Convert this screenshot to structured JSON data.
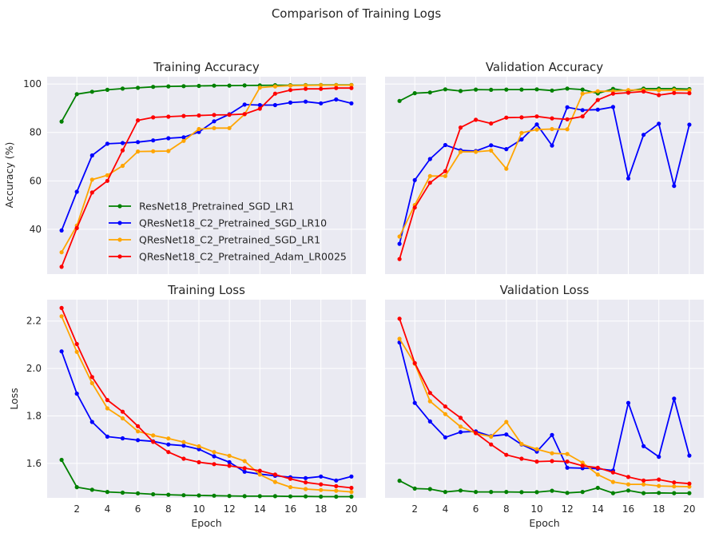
{
  "suptitle": "Comparison of Training Logs",
  "colors": {
    "green": "#008000",
    "blue": "#0000ff",
    "orange": "#ffa500",
    "red": "#ff0000"
  },
  "legend_placement": "lower-right inside Training Accuracy panel",
  "chart_data": [
    {
      "type": "line",
      "title": "Training Accuracy",
      "xlabel": "",
      "ylabel": "Accuracy (%)",
      "x": [
        1,
        2,
        3,
        4,
        5,
        6,
        7,
        8,
        9,
        10,
        11,
        12,
        13,
        14,
        15,
        16,
        17,
        18,
        19,
        20
      ],
      "xlim": [
        0.05,
        20.95
      ],
      "ylim": [
        21.5,
        103
      ],
      "xticks": [
        2,
        4,
        6,
        8,
        10,
        12,
        14,
        16,
        18,
        20
      ],
      "yticks": [
        40,
        60,
        80,
        100
      ],
      "ytick_labels": [
        "40",
        "60",
        "80",
        "100"
      ],
      "grid": true,
      "series": [
        {
          "name": "ResNet18_Pretrained_SGD_LR1",
          "color": "#008000",
          "values": [
            84.5,
            95.8,
            96.8,
            97.6,
            98.1,
            98.4,
            98.8,
            99.0,
            99.1,
            99.2,
            99.3,
            99.35,
            99.4,
            99.45,
            99.5,
            99.5,
            99.55,
            99.6,
            99.6,
            99.6
          ]
        },
        {
          "name": "QResNet18_C2_Pretrained_SGD_LR10",
          "color": "#0000ff",
          "values": [
            39.5,
            55.5,
            70.5,
            75.3,
            75.6,
            76.0,
            76.7,
            77.6,
            78.0,
            80.2,
            84.6,
            87.5,
            91.5,
            91.3,
            91.3,
            92.3,
            92.7,
            92.0,
            93.6,
            92.0
          ]
        },
        {
          "name": "QResNet18_C2_Pretrained_SGD_LR1",
          "color": "#ffa500",
          "values": [
            30.5,
            41.5,
            60.5,
            62.3,
            66.2,
            72.1,
            72.2,
            72.3,
            76.5,
            81.4,
            81.8,
            81.8,
            87.5,
            98.5,
            99.0,
            99.3,
            99.4,
            99.5,
            99.5,
            99.5
          ]
        },
        {
          "name": "QResNet18_C2_Pretrained_Adam_LR0025",
          "color": "#ff0000",
          "values": [
            24.5,
            40.5,
            55.2,
            60.0,
            72.6,
            85.0,
            86.2,
            86.5,
            86.8,
            87.0,
            87.2,
            87.3,
            87.6,
            89.8,
            96.0,
            97.5,
            98.0,
            98.0,
            98.3,
            98.3
          ]
        }
      ]
    },
    {
      "type": "line",
      "title": "Validation Accuracy",
      "xlabel": "",
      "ylabel": "",
      "x": [
        1,
        2,
        3,
        4,
        5,
        6,
        7,
        8,
        9,
        10,
        11,
        12,
        13,
        14,
        15,
        16,
        17,
        18,
        19,
        20
      ],
      "xlim": [
        0.05,
        20.95
      ],
      "ylim": [
        21.5,
        103
      ],
      "xticks": [
        2,
        4,
        6,
        8,
        10,
        12,
        14,
        16,
        18,
        20
      ],
      "yticks": [
        40,
        60,
        80,
        100
      ],
      "ytick_labels": [],
      "grid": true,
      "series": [
        {
          "name": "ResNet18_Pretrained_SGD_LR1",
          "color": "#008000",
          "values": [
            93.0,
            96.2,
            96.5,
            97.8,
            97.1,
            97.7,
            97.6,
            97.7,
            97.7,
            97.8,
            97.3,
            98.1,
            97.7,
            96.1,
            98.0,
            97.1,
            98.1,
            98.1,
            98.1,
            97.9
          ]
        },
        {
          "name": "QResNet18_C2_Pretrained_SGD_LR10",
          "color": "#0000ff",
          "values": [
            34.0,
            60.3,
            69.0,
            74.8,
            72.6,
            72.3,
            74.7,
            73.1,
            77.1,
            83.3,
            74.6,
            90.4,
            89.2,
            89.4,
            90.5,
            61.0,
            79.0,
            83.6,
            57.9,
            83.2
          ]
        },
        {
          "name": "QResNet18_C2_Pretrained_SGD_LR1",
          "color": "#ffa500",
          "values": [
            37.0,
            50.0,
            62.0,
            62.0,
            72.0,
            72.0,
            72.5,
            65.0,
            79.8,
            81.2,
            81.4,
            81.3,
            96.0,
            97.0,
            97.0,
            97.5,
            97.5,
            97.4,
            97.5,
            97.4
          ]
        },
        {
          "name": "QResNet18_C2_Pretrained_Adam_LR0025",
          "color": "#ff0000",
          "values": [
            27.7,
            49.0,
            59.2,
            64.0,
            82.0,
            85.2,
            83.7,
            86.1,
            86.2,
            86.6,
            85.8,
            85.4,
            86.6,
            93.4,
            96.0,
            96.4,
            96.9,
            95.4,
            96.3,
            96.2
          ]
        }
      ]
    },
    {
      "type": "line",
      "title": "Training Loss",
      "xlabel": "Epoch",
      "ylabel": "Loss",
      "x": [
        1,
        2,
        3,
        4,
        5,
        6,
        7,
        8,
        9,
        10,
        11,
        12,
        13,
        14,
        15,
        16,
        17,
        18,
        19,
        20
      ],
      "xlim": [
        0.05,
        20.95
      ],
      "ylim": [
        1.455,
        2.29
      ],
      "xticks": [
        2,
        4,
        6,
        8,
        10,
        12,
        14,
        16,
        18,
        20
      ],
      "xtick_labels": [
        "2",
        "4",
        "6",
        "8",
        "10",
        "12",
        "14",
        "16",
        "18",
        "20"
      ],
      "yticks": [
        1.6,
        1.8,
        2.0,
        2.2
      ],
      "ytick_labels": [
        "1.6",
        "1.8",
        "2.0",
        "2.2"
      ],
      "grid": true,
      "series": [
        {
          "name": "ResNet18_Pretrained_SGD_LR1",
          "color": "#008000",
          "values": [
            1.615,
            1.5,
            1.489,
            1.48,
            1.477,
            1.474,
            1.47,
            1.468,
            1.466,
            1.465,
            1.464,
            1.463,
            1.462,
            1.462,
            1.462,
            1.461,
            1.461,
            1.46,
            1.46,
            1.46
          ]
        },
        {
          "name": "QResNet18_C2_Pretrained_SGD_LR10",
          "color": "#0000ff",
          "values": [
            2.072,
            1.894,
            1.775,
            1.713,
            1.706,
            1.698,
            1.693,
            1.68,
            1.675,
            1.66,
            1.63,
            1.605,
            1.565,
            1.555,
            1.548,
            1.542,
            1.538,
            1.545,
            1.528,
            1.545
          ]
        },
        {
          "name": "QResNet18_C2_Pretrained_SGD_LR1",
          "color": "#ffa500",
          "values": [
            2.22,
            2.07,
            1.938,
            1.832,
            1.79,
            1.735,
            1.718,
            1.705,
            1.69,
            1.672,
            1.648,
            1.632,
            1.61,
            1.553,
            1.522,
            1.5,
            1.492,
            1.488,
            1.485,
            1.48
          ]
        },
        {
          "name": "QResNet18_C2_Pretrained_Adam_LR0025",
          "color": "#ff0000",
          "values": [
            2.255,
            2.103,
            1.964,
            1.867,
            1.818,
            1.757,
            1.691,
            1.648,
            1.62,
            1.605,
            1.597,
            1.59,
            1.58,
            1.569,
            1.553,
            1.535,
            1.52,
            1.512,
            1.504,
            1.497
          ]
        }
      ]
    },
    {
      "type": "line",
      "title": "Validation Loss",
      "xlabel": "Epoch",
      "ylabel": "",
      "x": [
        1,
        2,
        3,
        4,
        5,
        6,
        7,
        8,
        9,
        10,
        11,
        12,
        13,
        14,
        15,
        16,
        17,
        18,
        19,
        20
      ],
      "xlim": [
        0.05,
        20.95
      ],
      "ylim": [
        1.455,
        2.29
      ],
      "xticks": [
        2,
        4,
        6,
        8,
        10,
        12,
        14,
        16,
        18,
        20
      ],
      "xtick_labels": [
        "2",
        "4",
        "6",
        "8",
        "10",
        "12",
        "14",
        "16",
        "18",
        "20"
      ],
      "yticks": [
        1.6,
        1.8,
        2.0,
        2.2
      ],
      "ytick_labels": [],
      "grid": true,
      "series": [
        {
          "name": "ResNet18_Pretrained_SGD_LR1",
          "color": "#008000",
          "values": [
            1.527,
            1.494,
            1.492,
            1.48,
            1.486,
            1.48,
            1.48,
            1.48,
            1.479,
            1.479,
            1.485,
            1.476,
            1.48,
            1.497,
            1.475,
            1.486,
            1.475,
            1.476,
            1.475,
            1.475
          ]
        },
        {
          "name": "QResNet18_C2_Pretrained_SGD_LR10",
          "color": "#0000ff",
          "values": [
            2.11,
            1.855,
            1.777,
            1.71,
            1.732,
            1.735,
            1.715,
            1.722,
            1.68,
            1.65,
            1.72,
            1.582,
            1.58,
            1.578,
            1.57,
            1.855,
            1.673,
            1.628,
            1.873,
            1.633
          ]
        },
        {
          "name": "QResNet18_C2_Pretrained_SGD_LR1",
          "color": "#ffa500",
          "values": [
            2.125,
            2.02,
            1.862,
            1.808,
            1.755,
            1.727,
            1.713,
            1.775,
            1.682,
            1.66,
            1.643,
            1.64,
            1.603,
            1.553,
            1.522,
            1.512,
            1.512,
            1.505,
            1.503,
            1.502
          ]
        },
        {
          "name": "QResNet18_C2_Pretrained_Adam_LR0025",
          "color": "#ff0000",
          "values": [
            2.21,
            2.023,
            1.897,
            1.84,
            1.792,
            1.728,
            1.68,
            1.636,
            1.62,
            1.608,
            1.61,
            1.608,
            1.59,
            1.582,
            1.562,
            1.543,
            1.528,
            1.532,
            1.52,
            1.515
          ]
        }
      ]
    }
  ]
}
